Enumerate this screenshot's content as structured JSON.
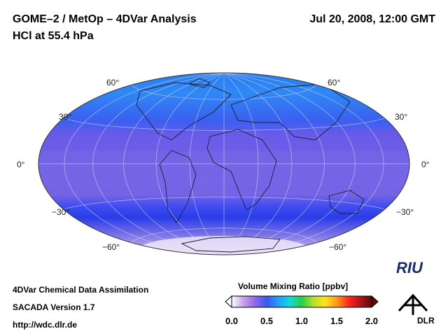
{
  "header": {
    "title_line1": "GOME–2 / MetOp – 4DVar Analysis",
    "title_line2": "HCl at 55.4 hPa",
    "datetime": "Jul 20, 2008, 12:00 GMT"
  },
  "map": {
    "projection": "hammer-aitoff",
    "lat_labels_left": [
      "60°",
      "30°",
      "0°",
      "−30°",
      "−60°"
    ],
    "lat_labels_right": [
      "60°",
      "30°",
      "0°",
      "−30°",
      "−60°"
    ]
  },
  "colorbar": {
    "title": "Volume Mixing Ratio [ppbv]",
    "ticks": [
      "0.0",
      "0.5",
      "1.0",
      "1.5",
      "2.0"
    ],
    "colors": [
      "#ffffff",
      "#c9a0e8",
      "#8a6be8",
      "#3d55f0",
      "#1fa0ff",
      "#18d6d6",
      "#22d04a",
      "#b8e02a",
      "#ffe21f",
      "#ff9a1a",
      "#ff2a1a",
      "#b3121a",
      "#5a0808"
    ]
  },
  "footer": {
    "line1": "4DVar Chemical Data Assimilation",
    "line2": "SACADA Version 1.7",
    "line3": "http://wdc.dlr.de"
  },
  "logos": {
    "riu_text": "RIU",
    "dlr_text": "DLR"
  }
}
